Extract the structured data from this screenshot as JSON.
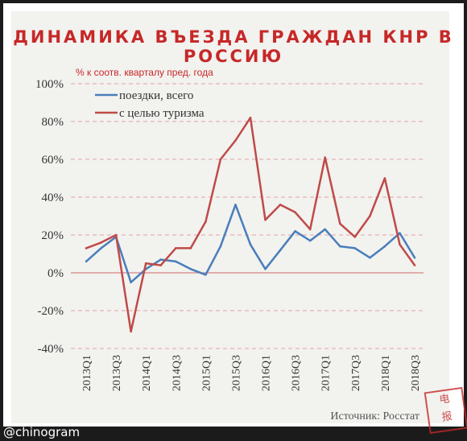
{
  "header": {
    "title": "ДИНАМИКА ВЪЕЗДА ГРАЖДАН КНР В РОССИЮ"
  },
  "credit": "@chinogram",
  "stamp": {
    "text": "电报"
  },
  "chart_data": {
    "type": "line",
    "title": "ДИНАМИКА ВЪЕЗДА ГРАЖДАН КНР В РОССИЮ",
    "ylabel": "% к соотв. кварталу пред. года",
    "source": "Источник: Росстат",
    "ylim": [
      -40,
      100
    ],
    "yticks": [
      -40,
      -20,
      0,
      20,
      40,
      60,
      80,
      100
    ],
    "ytick_labels": [
      "-40%",
      "-20%",
      "0%",
      "20%",
      "40%",
      "60%",
      "80%",
      "100%"
    ],
    "grid": true,
    "legend_position": "top-left",
    "x": [
      "2013Q1",
      "2013Q2",
      "2013Q3",
      "2013Q4",
      "2014Q1",
      "2014Q2",
      "2014Q3",
      "2014Q4",
      "2015Q1",
      "2015Q2",
      "2015Q3",
      "2015Q4",
      "2016Q1",
      "2016Q2",
      "2016Q3",
      "2016Q4",
      "2017Q1",
      "2017Q2",
      "2017Q3",
      "2017Q4",
      "2018Q1",
      "2018Q2",
      "2018Q3"
    ],
    "x_tick_labels": [
      "2013Q1",
      "2013Q3",
      "2014Q1",
      "2014Q3",
      "2015Q1",
      "2015Q3",
      "2016Q1",
      "2016Q3",
      "2017Q1",
      "2017Q3",
      "2018Q1",
      "2018Q3"
    ],
    "series": [
      {
        "name": "поездки, всего",
        "color": "#4a7ebb",
        "values": [
          6,
          13,
          19,
          -5,
          2,
          7,
          6,
          2,
          -1,
          14,
          36,
          15,
          2,
          12,
          22,
          17,
          23,
          14,
          13,
          8,
          14,
          21,
          8
        ]
      },
      {
        "name": "с целью туризма",
        "color": "#be4b48",
        "values": [
          13,
          16,
          20,
          -31,
          5,
          4,
          13,
          13,
          27,
          60,
          70,
          82,
          28,
          36,
          32,
          23,
          61,
          26,
          19,
          30,
          50,
          15,
          4
        ]
      }
    ]
  }
}
